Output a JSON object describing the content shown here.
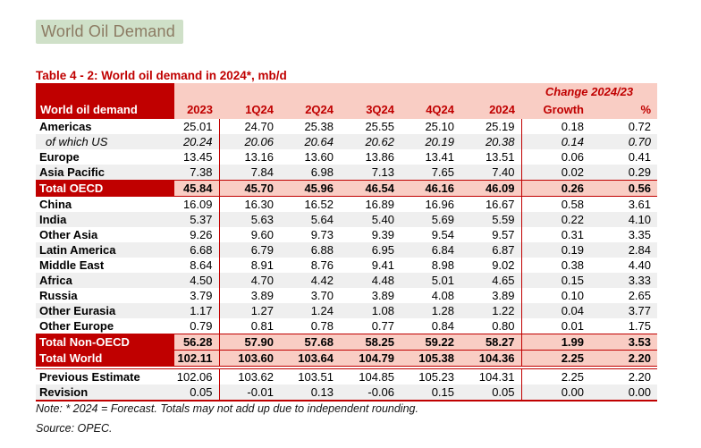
{
  "banner": {
    "label": "World Oil Demand"
  },
  "title": "Table 4 - 2: World oil demand in 2024*, mb/d",
  "colors": {
    "accent_red": "#c00000",
    "header_pink": "#f9cdc4",
    "stripe_gray": "#efefef",
    "banner_green": "#cfe0c8",
    "banner_text": "#8c7b63"
  },
  "table": {
    "label_header": "World oil demand",
    "change_header": "Change 2024/23",
    "columns": [
      "2023",
      "1Q24",
      "2Q24",
      "3Q24",
      "4Q24",
      "2024",
      "Growth",
      "%"
    ],
    "rows": [
      {
        "label": "Americas",
        "type": "data",
        "values": [
          "25.01",
          "24.70",
          "25.38",
          "25.55",
          "25.10",
          "25.19",
          "0.18",
          "0.72"
        ]
      },
      {
        "label": "of which US",
        "type": "sub",
        "values": [
          "20.24",
          "20.06",
          "20.64",
          "20.62",
          "20.19",
          "20.38",
          "0.14",
          "0.70"
        ]
      },
      {
        "label": "Europe",
        "type": "data",
        "values": [
          "13.45",
          "13.16",
          "13.60",
          "13.86",
          "13.41",
          "13.51",
          "0.06",
          "0.41"
        ]
      },
      {
        "label": "Asia Pacific",
        "type": "data",
        "values": [
          "7.38",
          "7.84",
          "6.98",
          "7.13",
          "7.65",
          "7.40",
          "0.02",
          "0.29"
        ]
      },
      {
        "label": "Total OECD",
        "type": "total",
        "values": [
          "45.84",
          "45.70",
          "45.96",
          "46.54",
          "46.16",
          "46.09",
          "0.26",
          "0.56"
        ]
      },
      {
        "label": "China",
        "type": "data",
        "values": [
          "16.09",
          "16.30",
          "16.52",
          "16.89",
          "16.96",
          "16.67",
          "0.58",
          "3.61"
        ]
      },
      {
        "label": "India",
        "type": "data",
        "values": [
          "5.37",
          "5.63",
          "5.64",
          "5.40",
          "5.69",
          "5.59",
          "0.22",
          "4.10"
        ]
      },
      {
        "label": "Other Asia",
        "type": "data",
        "values": [
          "9.26",
          "9.60",
          "9.73",
          "9.39",
          "9.54",
          "9.57",
          "0.31",
          "3.35"
        ]
      },
      {
        "label": "Latin America",
        "type": "data",
        "values": [
          "6.68",
          "6.79",
          "6.88",
          "6.95",
          "6.84",
          "6.87",
          "0.19",
          "2.84"
        ]
      },
      {
        "label": "Middle East",
        "type": "data",
        "values": [
          "8.64",
          "8.91",
          "8.76",
          "9.41",
          "8.98",
          "9.02",
          "0.38",
          "4.40"
        ]
      },
      {
        "label": "Africa",
        "type": "data",
        "values": [
          "4.50",
          "4.70",
          "4.42",
          "4.48",
          "5.01",
          "4.65",
          "0.15",
          "3.33"
        ]
      },
      {
        "label": "Russia",
        "type": "data",
        "values": [
          "3.79",
          "3.89",
          "3.70",
          "3.89",
          "4.08",
          "3.89",
          "0.10",
          "2.65"
        ]
      },
      {
        "label": "Other Eurasia",
        "type": "data",
        "values": [
          "1.17",
          "1.27",
          "1.24",
          "1.08",
          "1.28",
          "1.22",
          "0.04",
          "3.77"
        ]
      },
      {
        "label": "Other Europe",
        "type": "data",
        "values": [
          "0.79",
          "0.81",
          "0.78",
          "0.77",
          "0.84",
          "0.80",
          "0.01",
          "1.75"
        ]
      },
      {
        "label": "Total Non-OECD",
        "type": "total",
        "values": [
          "56.28",
          "57.90",
          "57.68",
          "58.25",
          "59.22",
          "58.27",
          "1.99",
          "3.53"
        ]
      },
      {
        "label": "Total World",
        "type": "total_world",
        "values": [
          "102.11",
          "103.60",
          "103.64",
          "104.79",
          "105.38",
          "104.36",
          "2.25",
          "2.20"
        ]
      },
      {
        "label": "Previous Estimate",
        "type": "estimate",
        "values": [
          "102.06",
          "103.62",
          "103.51",
          "104.85",
          "105.23",
          "104.31",
          "2.25",
          "2.20"
        ]
      },
      {
        "label": "Revision",
        "type": "revision",
        "values": [
          "0.05",
          "-0.01",
          "0.13",
          "-0.06",
          "0.15",
          "0.05",
          "0.00",
          "0.00"
        ]
      }
    ]
  },
  "footer": {
    "note": "Note: * 2024 = Forecast. Totals may not add up due to independent rounding.",
    "source": "Source: OPEC."
  }
}
